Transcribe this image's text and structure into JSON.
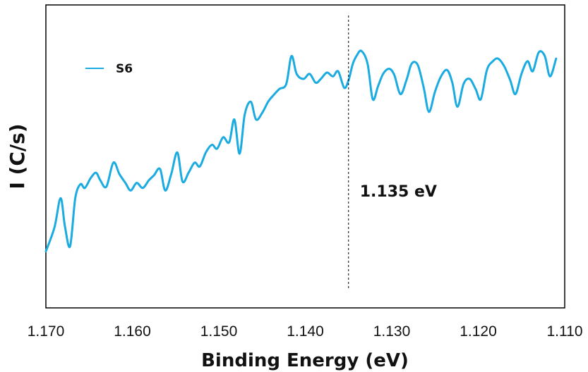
{
  "chart_data": {
    "type": "line",
    "title": "",
    "xlabel": "Binding Energy (eV)",
    "ylabel": "I (C/s)",
    "xlim": [
      1.17,
      1.11
    ],
    "x_reversed": true,
    "ylim": [
      0,
      100
    ],
    "y_tick_labels_shown": false,
    "xticks": [
      "1.170",
      "1.160",
      "1.150",
      "1.140",
      "1.130",
      "1.120",
      "1.110"
    ],
    "grid": false,
    "legend_position": "top-left",
    "series": [
      {
        "name": "S6",
        "color": "#1aabe0",
        "x": [
          1.17,
          1.169,
          1.1683,
          1.1678,
          1.1672,
          1.1666,
          1.166,
          1.1655,
          1.1648,
          1.1642,
          1.1637,
          1.163,
          1.1622,
          1.1615,
          1.1608,
          1.1602,
          1.1595,
          1.1588,
          1.1581,
          1.1575,
          1.1568,
          1.1562,
          1.1555,
          1.1548,
          1.1542,
          1.1535,
          1.1528,
          1.1522,
          1.1515,
          1.1508,
          1.1502,
          1.1495,
          1.1488,
          1.1482,
          1.1476,
          1.147,
          1.1463,
          1.1457,
          1.145,
          1.1443,
          1.1437,
          1.143,
          1.1422,
          1.1416,
          1.141,
          1.1402,
          1.1395,
          1.1388,
          1.1382,
          1.1375,
          1.1368,
          1.1362,
          1.1355,
          1.135,
          1.1345,
          1.134,
          1.1335,
          1.1328,
          1.1322,
          1.1316,
          1.131,
          1.1303,
          1.1297,
          1.129,
          1.1283,
          1.1277,
          1.127,
          1.1263,
          1.1257,
          1.125,
          1.1243,
          1.1236,
          1.123,
          1.1224,
          1.1217,
          1.121,
          1.1203,
          1.1197,
          1.119,
          1.1183,
          1.1177,
          1.117,
          1.1163,
          1.1157,
          1.115,
          1.1143,
          1.1137,
          1.113,
          1.1123,
          1.1117,
          1.111
        ],
        "y": [
          12.0,
          21.5,
          33.0,
          22.0,
          14.0,
          33.0,
          38.5,
          37.0,
          41.0,
          43.0,
          40.0,
          37.5,
          47.0,
          42.5,
          39.0,
          36.0,
          39.0,
          37.0,
          40.0,
          42.0,
          44.5,
          36.0,
          42.5,
          51.0,
          39.5,
          43.0,
          47.0,
          45.5,
          51.0,
          54.0,
          52.5,
          57.0,
          55.0,
          64.0,
          50.5,
          66.0,
          71.0,
          64.0,
          66.5,
          71.0,
          73.5,
          76.0,
          78.0,
          89.0,
          82.0,
          80.0,
          82.0,
          78.5,
          80.0,
          82.5,
          81.0,
          83.0,
          76.5,
          79.5,
          86.0,
          89.5,
          91.0,
          86.0,
          72.0,
          77.0,
          82.0,
          84.0,
          81.5,
          74.0,
          79.5,
          86.0,
          85.5,
          76.5,
          67.0,
          75.0,
          81.0,
          83.5,
          78.5,
          69.0,
          78.0,
          80.0,
          76.0,
          72.0,
          83.5,
          87.0,
          88.0,
          85.0,
          79.5,
          74.0,
          82.0,
          87.0,
          83.0,
          90.5,
          89.0,
          81.0,
          88.0
        ]
      }
    ],
    "annotations": [
      {
        "x": 1.135,
        "type": "vertical-dashed-line",
        "label": "1.135 eV"
      }
    ]
  }
}
